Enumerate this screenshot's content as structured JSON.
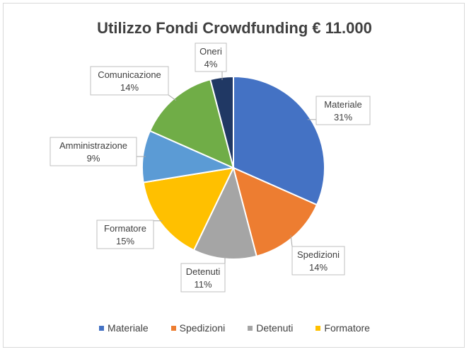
{
  "chart_data": {
    "type": "pie",
    "title": "Utilizzo Fondi Crowdfunding € 11.000",
    "slices": [
      {
        "label": "Materiale",
        "value": 31,
        "display": "31%",
        "color": "#4472c4"
      },
      {
        "label": "Spedizioni",
        "value": 14,
        "display": "14%",
        "color": "#ed7d31"
      },
      {
        "label": "Detenuti",
        "value": 11,
        "display": "11%",
        "color": "#a5a5a5"
      },
      {
        "label": "Formatore",
        "value": 15,
        "display": "15%",
        "color": "#ffc000"
      },
      {
        "label": "Amministrazione",
        "value": 9,
        "display": "9%",
        "color": "#5b9bd5"
      },
      {
        "label": "Comunicazione",
        "value": 14,
        "display": "14%",
        "color": "#70ad47"
      },
      {
        "label": "Oneri",
        "value": 4,
        "display": "4%",
        "color": "#203864"
      }
    ],
    "legend_position": "bottom",
    "legend_entries": [
      "Materiale",
      "Spedizioni",
      "Detenuti",
      "Formatore"
    ]
  }
}
